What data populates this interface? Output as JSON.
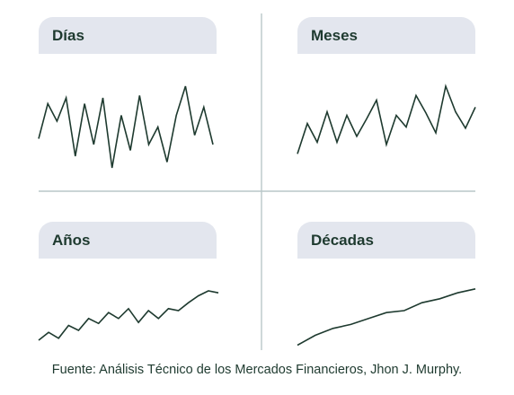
{
  "colors": {
    "line": "#1e3a2f",
    "tab_bg": "#e3e6ee",
    "divider": "#b9c7c9",
    "text": "#1e3a2f"
  },
  "panels": [
    {
      "label": "Días"
    },
    {
      "label": "Meses"
    },
    {
      "label": "Años"
    },
    {
      "label": "Décadas"
    }
  ],
  "footer": "Fuente: Análisis Técnico de los Mercados Financieros, Jhon J. Murphy.",
  "chart_data": [
    {
      "type": "line",
      "title": "Días",
      "axes_visible": false,
      "ylim": [
        0,
        100
      ],
      "x": [
        0,
        1,
        2,
        3,
        4,
        5,
        6,
        7,
        8,
        9,
        10,
        11,
        12,
        13,
        14,
        15,
        16,
        17,
        18,
        19
      ],
      "values": [
        35,
        65,
        50,
        70,
        20,
        65,
        30,
        70,
        10,
        55,
        25,
        72,
        30,
        45,
        15,
        55,
        80,
        38,
        62,
        30
      ]
    },
    {
      "type": "line",
      "title": "Meses",
      "axes_visible": false,
      "ylim": [
        0,
        100
      ],
      "x": [
        0,
        1,
        2,
        3,
        4,
        5,
        6,
        7,
        8,
        9,
        10,
        11,
        12,
        13,
        14,
        15,
        16,
        17,
        18
      ],
      "values": [
        22,
        48,
        32,
        58,
        32,
        55,
        37,
        52,
        68,
        30,
        55,
        45,
        72,
        57,
        40,
        80,
        58,
        44,
        62
      ]
    },
    {
      "type": "line",
      "title": "Años",
      "axes_visible": false,
      "ylim": [
        0,
        100
      ],
      "x": [
        0,
        1,
        2,
        3,
        4,
        5,
        6,
        7,
        8,
        9,
        10,
        11,
        12,
        13,
        14,
        15,
        16,
        17,
        18
      ],
      "values": [
        10,
        18,
        12,
        25,
        20,
        32,
        27,
        38,
        32,
        42,
        28,
        40,
        32,
        42,
        40,
        48,
        55,
        60,
        58
      ]
    },
    {
      "type": "line",
      "title": "Décadas",
      "axes_visible": false,
      "ylim": [
        0,
        100
      ],
      "x": [
        0,
        1,
        2,
        3,
        4,
        5,
        6,
        7,
        8,
        9,
        10
      ],
      "values": [
        5,
        15,
        22,
        26,
        32,
        38,
        40,
        48,
        52,
        58,
        62
      ]
    }
  ]
}
